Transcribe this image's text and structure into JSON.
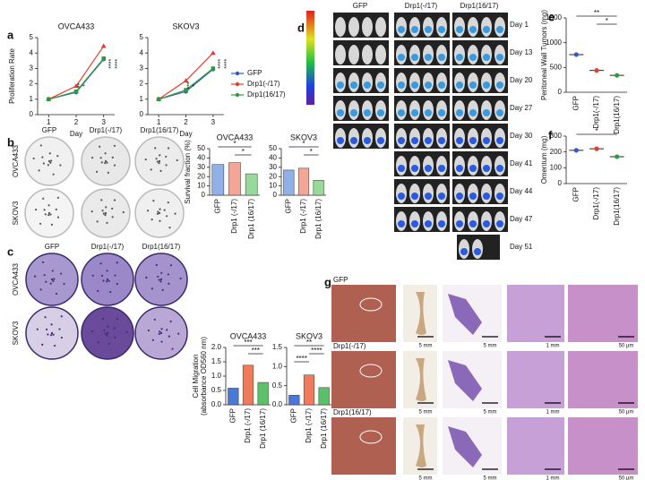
{
  "panels": [
    "a",
    "b",
    "c",
    "d",
    "e",
    "f",
    "g"
  ],
  "chart_data": [
    {
      "type": "line",
      "title": "OVCA433",
      "xlabel": "Day",
      "ylabel": "Proliferation Rate",
      "x": [
        1,
        2,
        3
      ],
      "xlim": [
        0.6,
        3.4
      ],
      "xticks": [
        1,
        2,
        3
      ],
      "ylim": [
        0,
        5
      ],
      "yticks": [
        0,
        1,
        2,
        3,
        4,
        5
      ],
      "series": [
        {
          "color": "#3558c8",
          "values": [
            1,
            1.45,
            3.6
          ]
        },
        {
          "color": "#e0402e",
          "values": [
            1,
            1.85,
            4.45
          ]
        },
        {
          "color": "#2e9a3e",
          "values": [
            1,
            1.5,
            3.65
          ]
        }
      ],
      "annotations": [
        "****",
        "****",
        "**",
        "*"
      ]
    },
    {
      "type": "line",
      "title": "SKOV3",
      "xlabel": "Day",
      "x": [
        1,
        2,
        3
      ],
      "xlim": [
        0.6,
        3.4
      ],
      "xticks": [
        1,
        2,
        3
      ],
      "ylim": [
        0,
        5
      ],
      "yticks": [
        0,
        1,
        2,
        3,
        4,
        5
      ],
      "series": [
        {
          "name": "GFP",
          "color": "#3558c8",
          "values": [
            1,
            1.5,
            2.95
          ]
        },
        {
          "name": "Drp1(-/17)",
          "color": "#e0402e",
          "values": [
            1,
            2.2,
            4.0
          ]
        },
        {
          "name": "Drp1(16/17)",
          "color": "#2e9a3e",
          "values": [
            1,
            1.6,
            3.0
          ]
        }
      ],
      "legend": "right",
      "annotations": [
        "****",
        "****",
        "***",
        "*"
      ]
    },
    {
      "type": "bar",
      "title": "OVCA433",
      "ylabel": "Survival fraction (%)",
      "categories": [
        "GFP",
        "Drp1 (-/17)",
        "Drp1 (16/17)"
      ],
      "values": [
        33,
        35,
        23
      ],
      "colors": [
        "#8fb0e8",
        "#f3a596",
        "#98d898"
      ],
      "ylim": [
        0,
        50
      ],
      "yticks": [
        0,
        10,
        20,
        30,
        40,
        50
      ],
      "annotations": [
        "*",
        "*"
      ]
    },
    {
      "type": "bar",
      "title": "SKOV3",
      "categories": [
        "GFP",
        "Drp1 (-/17)",
        "Drp1 (16/17)"
      ],
      "values": [
        27,
        29,
        16
      ],
      "colors": [
        "#8fb0e8",
        "#f3a596",
        "#98d898"
      ],
      "ylim": [
        0,
        50
      ],
      "yticks": [
        0,
        10,
        20,
        30,
        40,
        50
      ],
      "annotations": [
        "*",
        "*"
      ]
    },
    {
      "type": "bar",
      "title": "OVCA433",
      "ylabel": [
        "Cell Migration",
        "(absorbance OD560 nm)"
      ],
      "categories": [
        "GFP",
        "Drp1 (-/17)",
        "Drp1 (16/17)"
      ],
      "values": [
        0.58,
        1.38,
        0.78
      ],
      "colors": [
        "#4a78d8",
        "#f07a5c",
        "#5cc06a"
      ],
      "ylim": [
        0,
        2
      ],
      "yticks": [
        {
          "value": 0,
          "label": "0.0"
        },
        {
          "value": 0.5,
          "label": "0.5"
        },
        {
          "value": 1,
          "label": "1.0"
        },
        {
          "value": 1.5,
          "label": "1.5"
        },
        {
          "value": 2,
          "label": "2.0"
        }
      ],
      "annotations": [
        "***",
        "***"
      ]
    },
    {
      "type": "bar",
      "title": "SKOV3",
      "categories": [
        "GFP",
        "Drp1 (-/17)",
        "Drp1 (16/17)"
      ],
      "values": [
        0.25,
        0.78,
        0.45
      ],
      "colors": [
        "#4a78d8",
        "#f07a5c",
        "#5cc06a"
      ],
      "ylim": [
        0,
        1.5
      ],
      "yticks": [
        {
          "value": 0,
          "label": "0.0"
        },
        {
          "value": 0.5,
          "label": "0.5"
        },
        {
          "value": 1,
          "label": "1.0"
        },
        {
          "value": 1.5,
          "label": "1.5"
        }
      ],
      "annotations": [
        "**",
        "****",
        "****"
      ]
    },
    {
      "type": "dot",
      "ylabel": "Peritoneal Wall Tumors (mg)",
      "categories": [
        "GFP",
        "Drp1(-/17)",
        "Drp1(16/17)"
      ],
      "values": [
        760,
        440,
        340
      ],
      "colors": [
        "#3558c8",
        "#e0402e",
        "#2e9a3e"
      ],
      "ylim": [
        0,
        1500
      ],
      "yticks": [
        0,
        500,
        1000,
        1500
      ],
      "annotations": [
        "**",
        "*"
      ]
    },
    {
      "type": "dot",
      "ylabel": "Omentum (mg)",
      "categories": [
        "GFP",
        "Drp1(-/17)",
        "Drp1(16/17)"
      ],
      "values": [
        210,
        220,
        170
      ],
      "colors": [
        "#3558c8",
        "#e0402e",
        "#2e9a3e"
      ],
      "ylim": [
        0,
        300
      ],
      "yticks": [
        0,
        100,
        200,
        300
      ],
      "annotations": [
        "*"
      ]
    }
  ],
  "image_labels": {
    "b": {
      "columns": [
        "GFP",
        "Drp1(-/17)",
        "Drp1(16/17)"
      ],
      "rows": [
        "OVCA433",
        "SKOV3"
      ]
    },
    "c": {
      "columns": [
        "GFP",
        "Drp1(-/17)",
        "Drp1(16/17)"
      ],
      "rows": [
        "OVCA433",
        "SKOV3"
      ]
    },
    "d": {
      "columns": [
        "GFP",
        "Drp1(-/17)",
        "Drp1(16/17)"
      ],
      "days": [
        "Day 1",
        "Day 13",
        "Day 20",
        "Day 27",
        "Day 30",
        "Day 41",
        "Day 44",
        "Day 47",
        "Day 51"
      ]
    },
    "g": {
      "rows": [
        "GFP",
        "Drp1(-/17)",
        "Drp1(16/17)"
      ],
      "scale_bars": [
        "5 mm",
        "5 mm",
        "1 mm",
        "50 µm"
      ]
    }
  }
}
